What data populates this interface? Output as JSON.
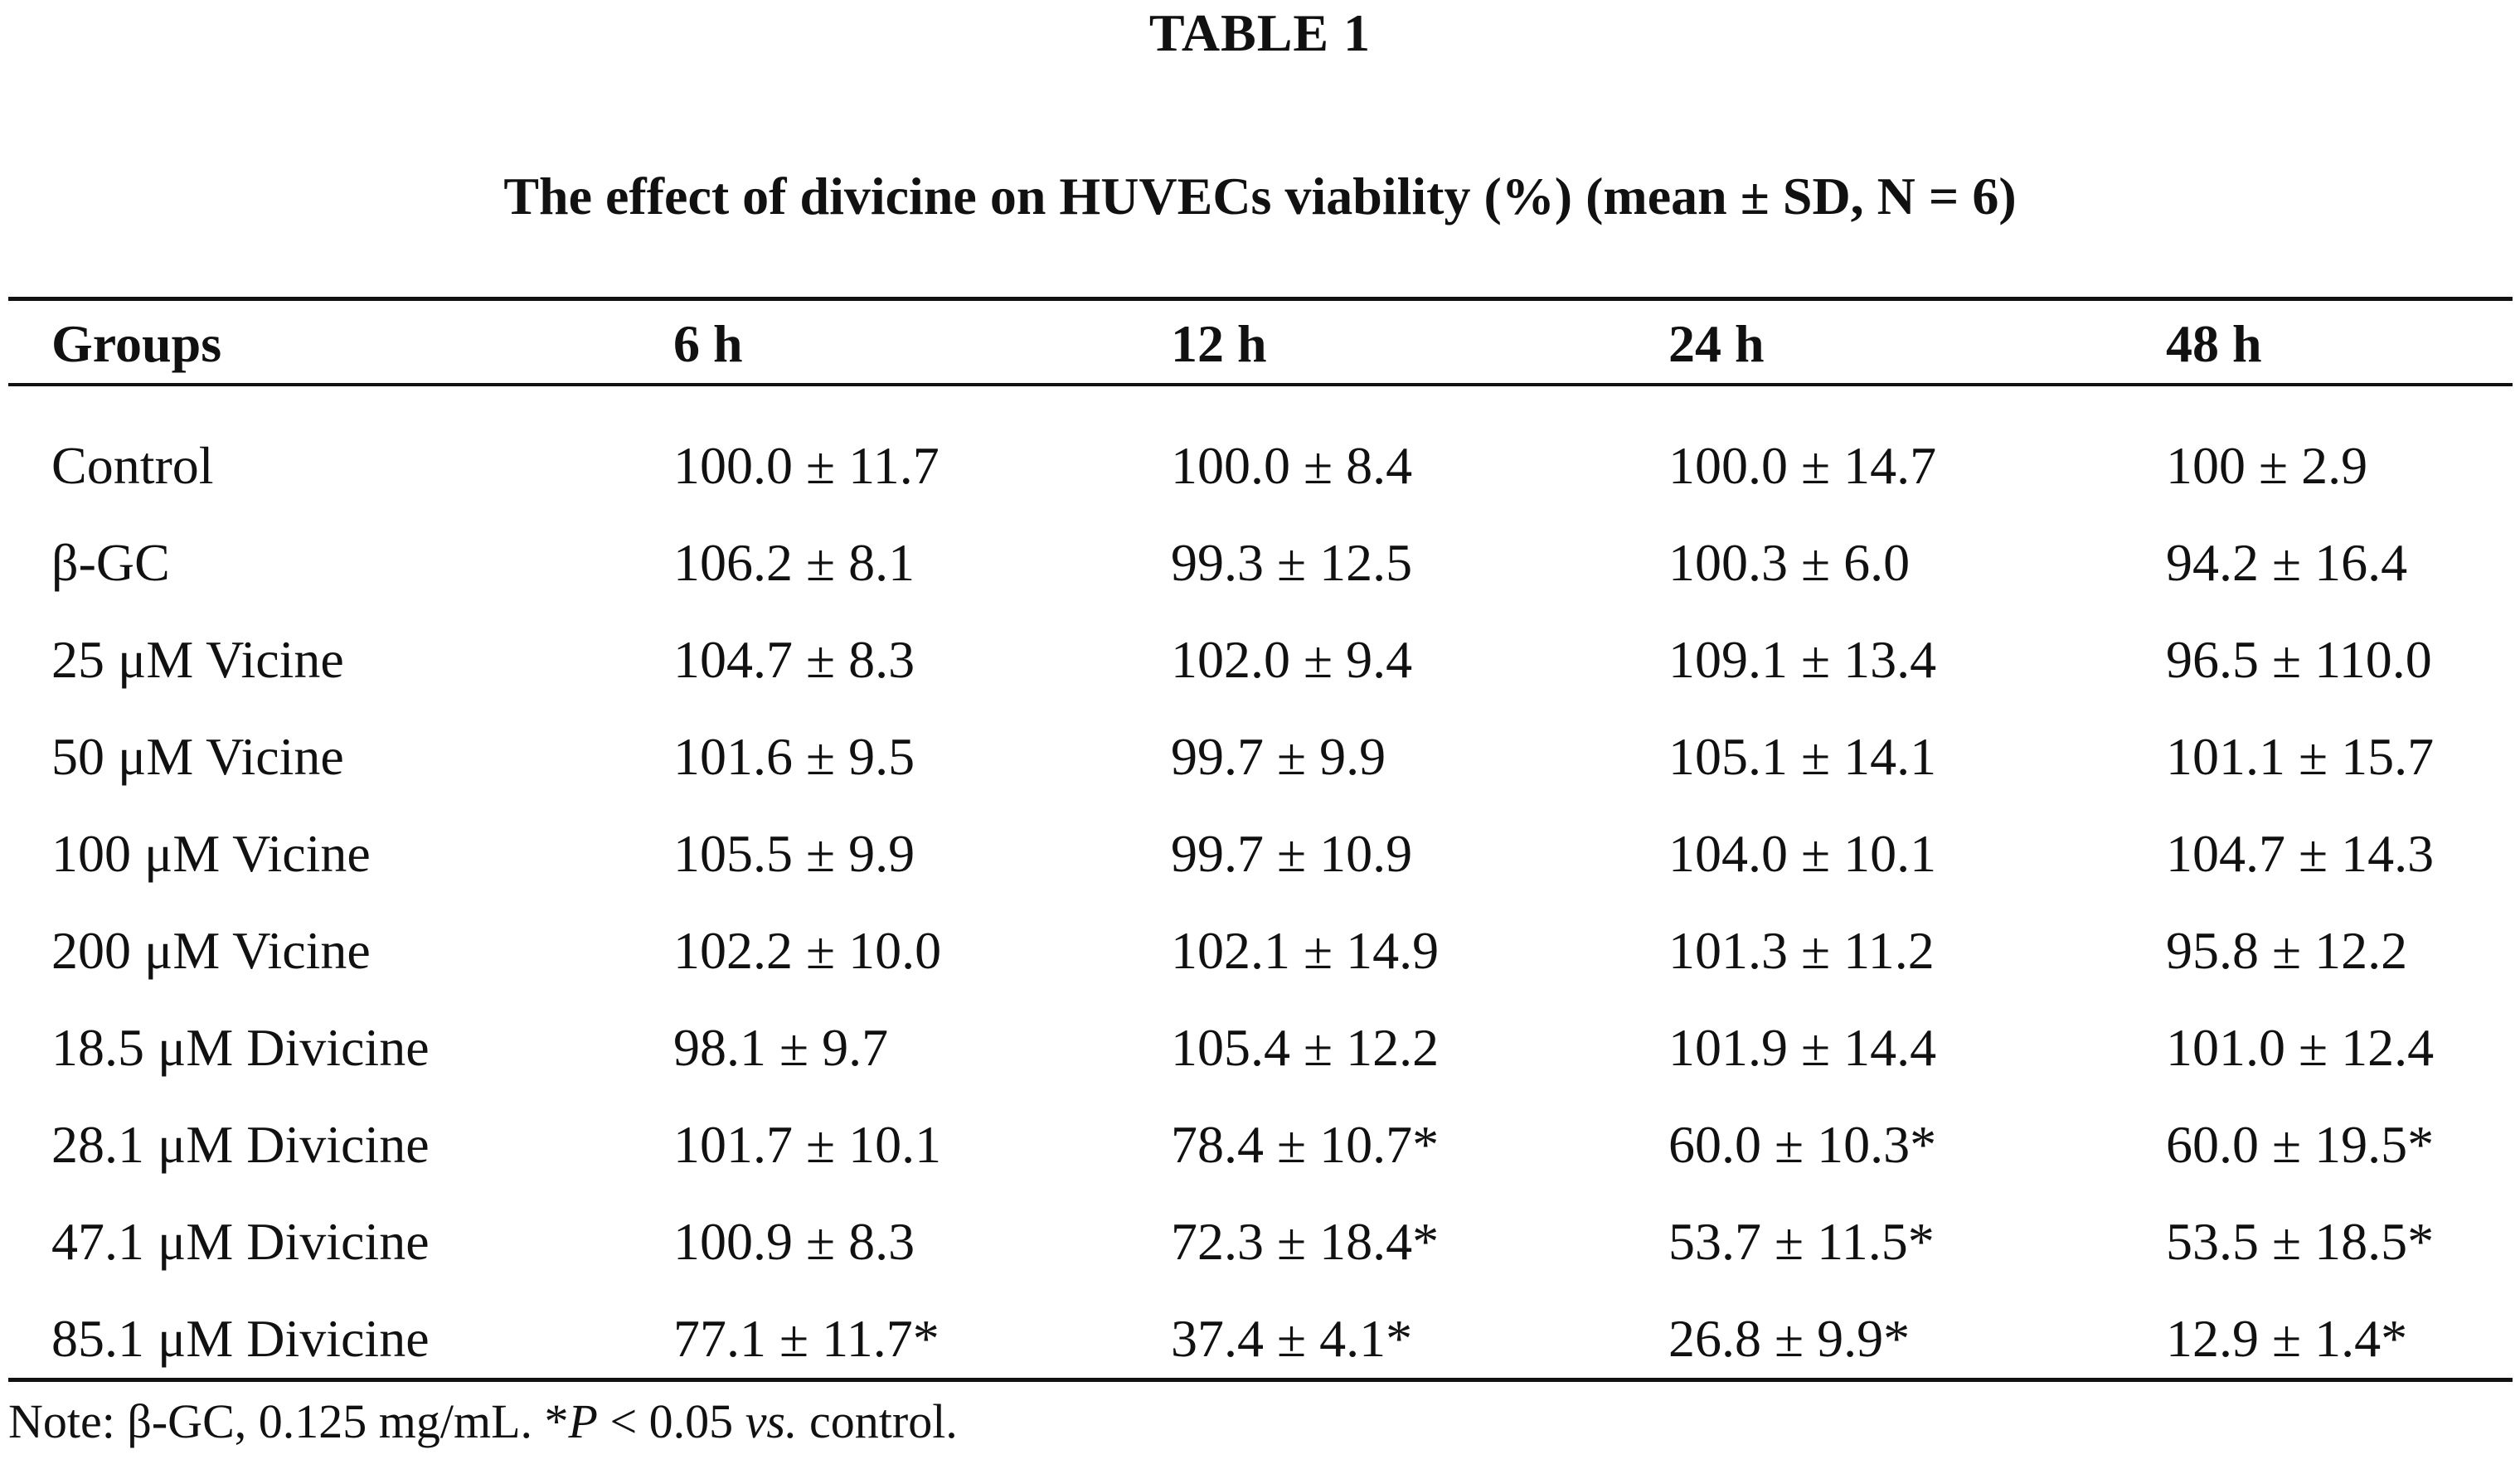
{
  "table_label": "TABLE 1",
  "caption": "The effect of divicine on HUVECs viability (%) (mean ± SD, N = 6)",
  "headers": [
    "Groups",
    "6 h",
    "12 h",
    "24 h",
    "48 h"
  ],
  "rows": [
    [
      "Control",
      "100.0 ± 11.7",
      "100.0 ± 8.4",
      "100.0 ± 14.7",
      "100 ± 2.9"
    ],
    [
      "β-GC",
      "106.2 ± 8.1",
      "99.3 ± 12.5",
      "100.3 ± 6.0",
      "94.2 ± 16.4"
    ],
    [
      "25 μM Vicine",
      "104.7 ± 8.3",
      "102.0 ± 9.4",
      "109.1 ± 13.4",
      "96.5 ± 110.0"
    ],
    [
      "50 μM Vicine",
      "101.6 ± 9.5",
      "99.7 ± 9.9",
      "105.1 ± 14.1",
      "101.1 ± 15.7"
    ],
    [
      "100 μM Vicine",
      "105.5 ± 9.9",
      "99.7 ± 10.9",
      "104.0 ± 10.1",
      "104.7 ± 14.3"
    ],
    [
      "200 μM Vicine",
      "102.2 ± 10.0",
      "102.1 ± 14.9",
      "101.3 ± 11.2",
      "95.8 ± 12.2"
    ],
    [
      "18.5 μM Divicine",
      "98.1 ± 9.7",
      "105.4 ± 12.2",
      "101.9 ± 14.4",
      "101.0 ± 12.4"
    ],
    [
      "28.1 μM Divicine",
      "101.7 ± 10.1",
      "78.4 ± 10.7*",
      "60.0 ± 10.3*",
      "60.0 ± 19.5*"
    ],
    [
      "47.1 μM Divicine",
      "100.9 ± 8.3",
      "72.3 ± 18.4*",
      "53.7 ± 11.5*",
      "53.5 ± 18.5*"
    ],
    [
      "85.1 μM Divicine",
      "77.1 ± 11.7*",
      "37.4 ± 4.1*",
      "26.8 ± 9.9*",
      "12.9 ± 1.4*"
    ]
  ],
  "footnote": {
    "part1": "Note: β-GC, 0.125 mg/mL. *",
    "p": "P",
    "part2": " < 0.05 ",
    "vs": "vs.",
    "part3": " control."
  }
}
